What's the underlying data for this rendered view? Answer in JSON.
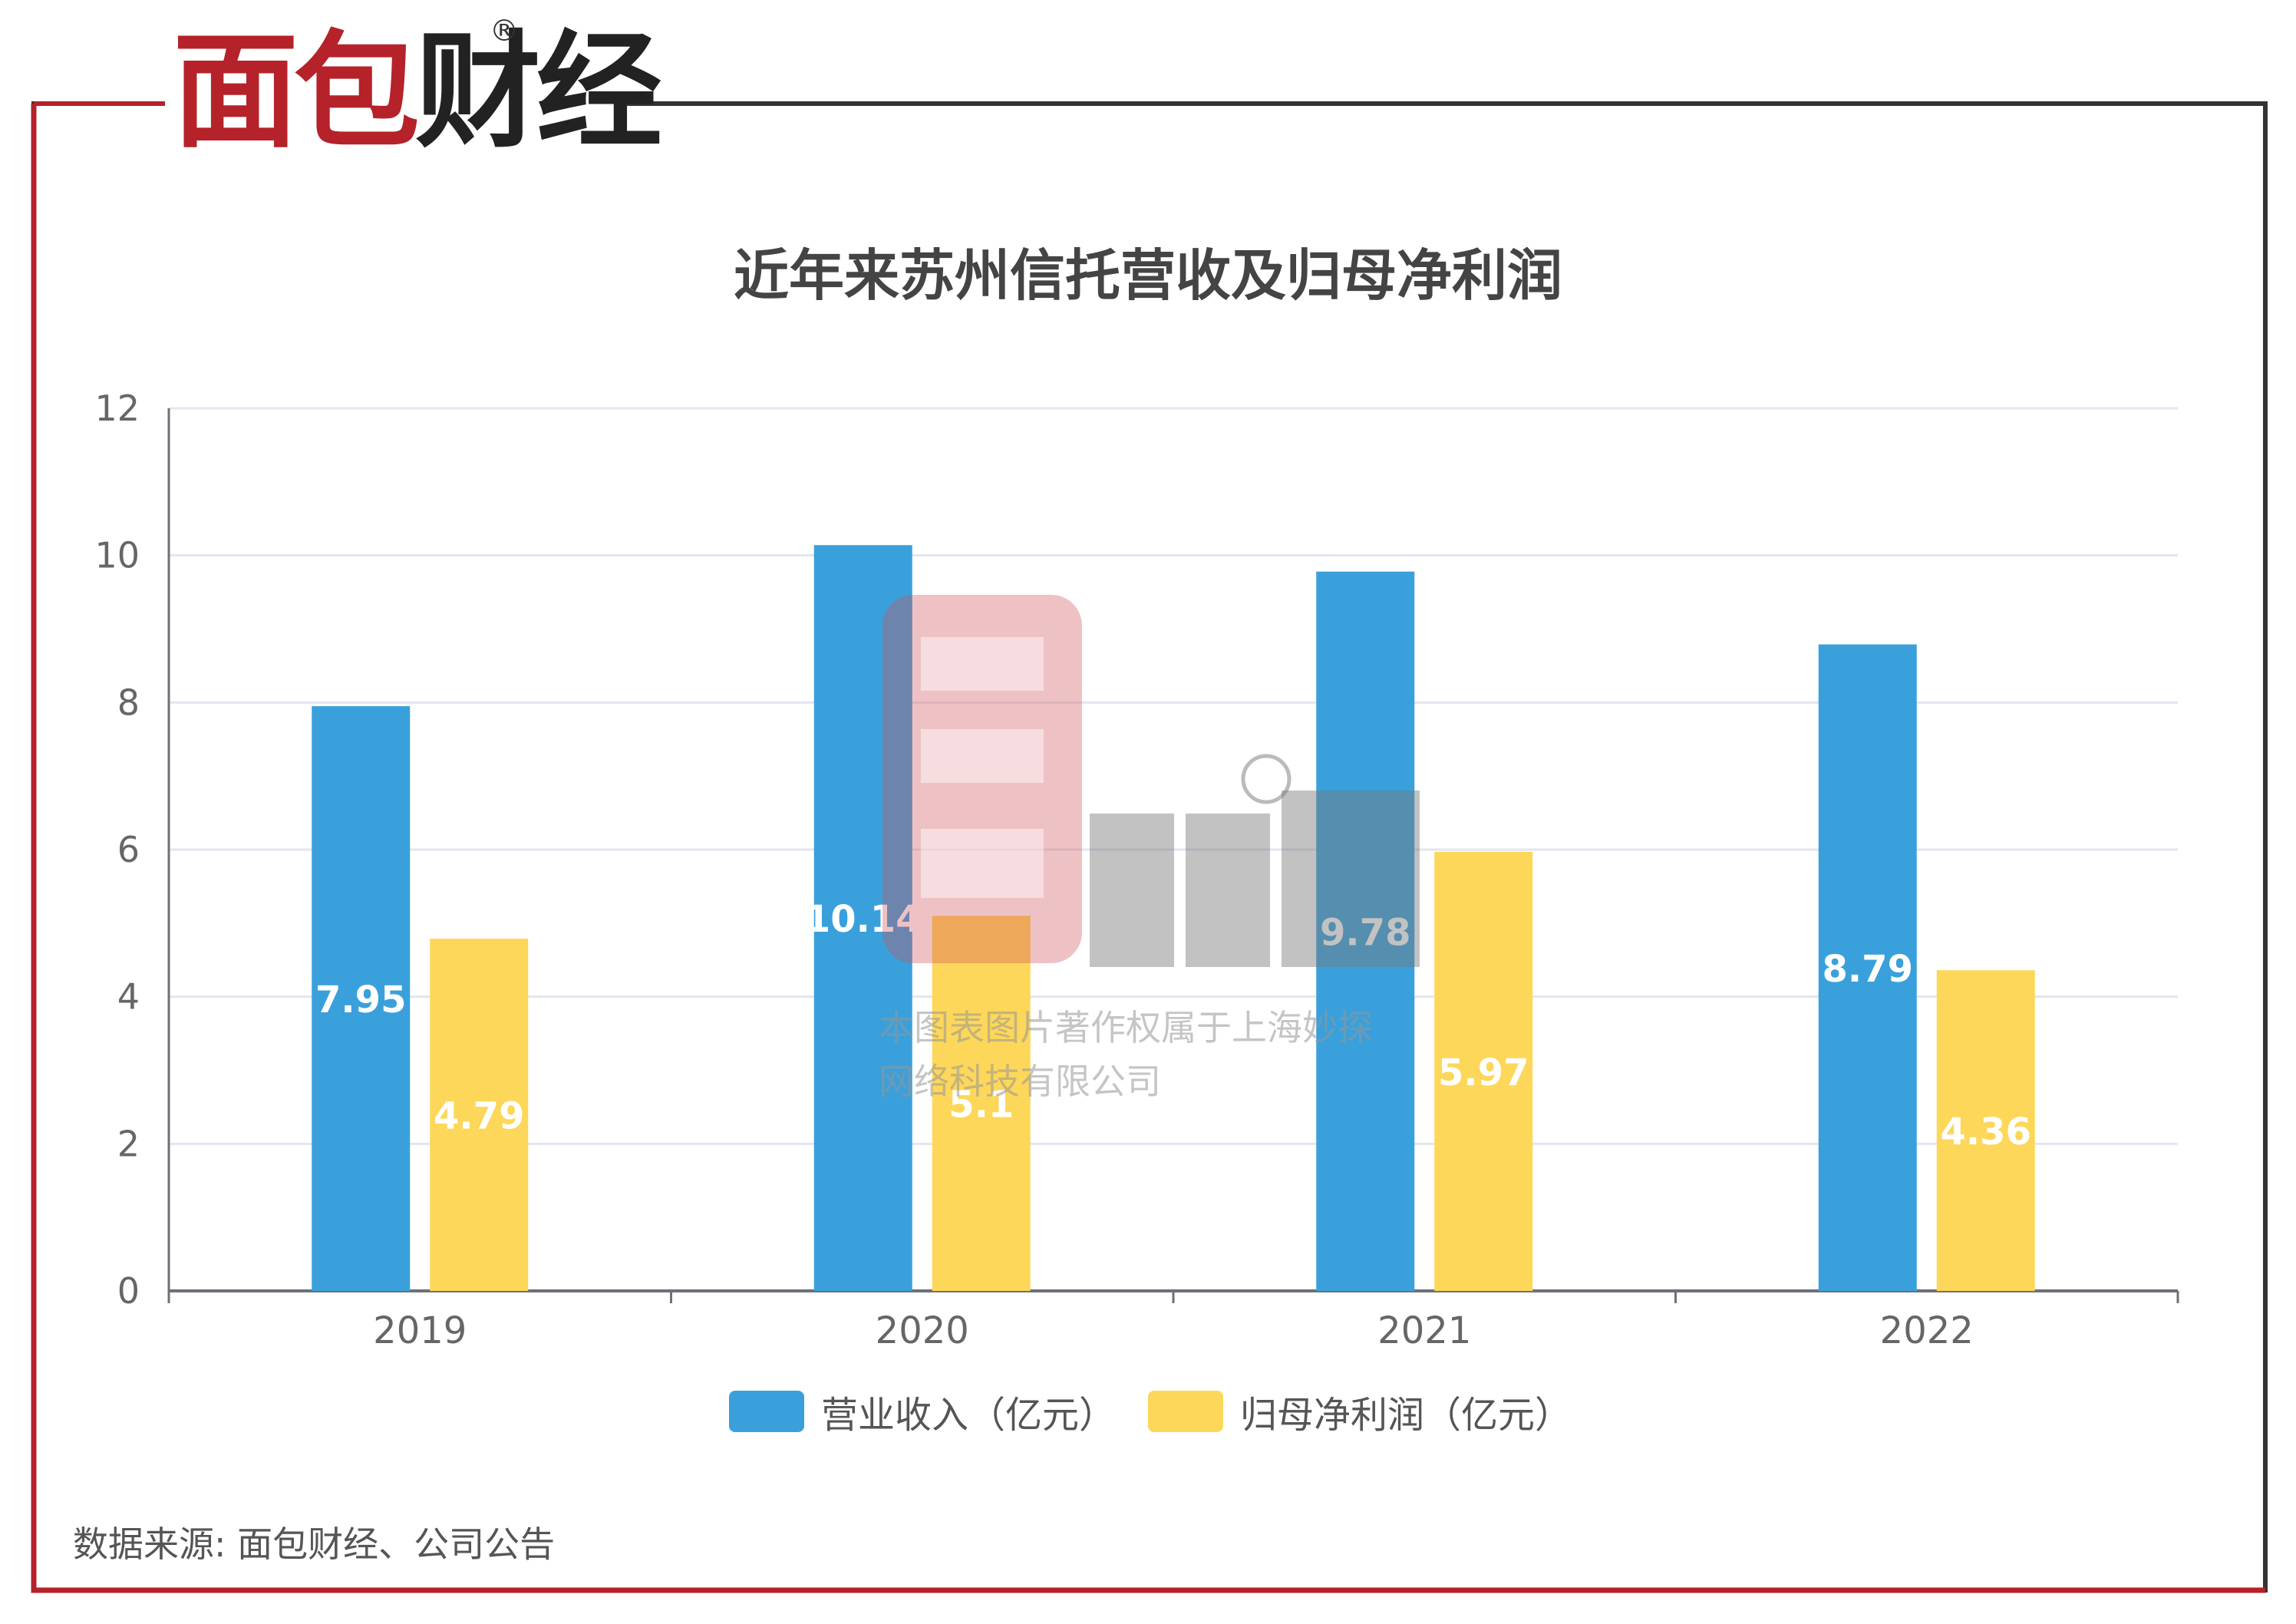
{
  "brand": {
    "logo_red": "面包",
    "logo_dark": "财经",
    "reg_mark": "®"
  },
  "colors": {
    "frame_red": "#b5222a",
    "frame_dark": "#333333",
    "bar_revenue": "#3aa0db",
    "bar_profit": "#fdd75a"
  },
  "chart_data": {
    "type": "bar",
    "title": "近年来苏州信托营收及归母净利润",
    "categories": [
      "2019",
      "2020",
      "2021",
      "2022"
    ],
    "series": [
      {
        "name": "营业收入（亿元）",
        "values": [
          7.95,
          10.14,
          9.78,
          8.79
        ],
        "labels": [
          "7.95",
          "10.14",
          "9.78",
          "8.79"
        ]
      },
      {
        "name": "归母净利润（亿元）",
        "values": [
          4.79,
          5.1,
          5.97,
          4.36
        ],
        "labels": [
          "4.79",
          "5.1",
          "5.97",
          "4.36"
        ]
      }
    ],
    "ylim": [
      0,
      12
    ],
    "yticks": [
      "0",
      "2",
      "4",
      "6",
      "8",
      "10",
      "12"
    ],
    "xlabel": "",
    "ylabel": "",
    "grid": true,
    "legend": "bottom"
  },
  "watermark": {
    "line1": "本图表图片著作权属于上海妙探",
    "line2": "网络科技有限公司"
  },
  "source": "数据来源: 面包财经、公司公告"
}
